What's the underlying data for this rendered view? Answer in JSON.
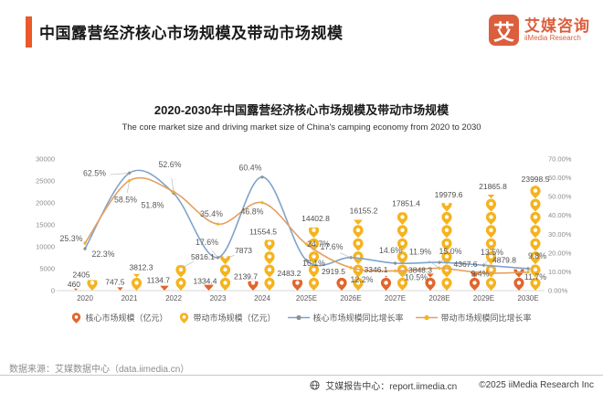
{
  "theme": {
    "accent": "#EB5928",
    "logo": "#DB5F3D"
  },
  "header": {
    "title": "中国露营经济核心市场规模及带动市场规模",
    "logo_mark": "艾",
    "logo_name": "艾媒咨询",
    "logo_sub": "iiMedia Research"
  },
  "chart": {
    "title": "2020-2030年中国露营经济核心市场规模及带动市场规模",
    "subtitle": "The core market size and driving market size of China's camping economy from 2020 to 2030"
  },
  "chart_data": {
    "type": "combo (pictograph columns + smooth lines)",
    "categories": [
      "2020",
      "2021",
      "2022",
      "2023",
      "2024",
      "2025E",
      "2026E",
      "2027E",
      "2028E",
      "2029E",
      "2030E"
    ],
    "series": [
      {
        "name": "核心市场规模（亿元）",
        "type": "pictograph",
        "axis": "left",
        "color": "#E0662C",
        "values": [
          460,
          747.5,
          1134.7,
          1334.4,
          2139.7,
          2483.2,
          2919.5,
          3346.1,
          3848.3,
          4367.6,
          4879.8
        ]
      },
      {
        "name": "带动市场规模（亿元）",
        "type": "pictograph",
        "axis": "left",
        "color": "#F5B31E",
        "values": [
          2405,
          3812.3,
          5816.1,
          7873,
          11554.5,
          14402.8,
          16155.2,
          17851.4,
          19979.6,
          21865.8,
          23998.5
        ]
      },
      {
        "name": "核心市场规模同比增长率",
        "type": "line",
        "axis": "right",
        "color": "#7FA3CC",
        "marker_color": "#8f8f8f",
        "values_percent": [
          22.3,
          62.5,
          51.8,
          17.6,
          60.4,
          16.1,
          17.6,
          14.6,
          15.0,
          13.5,
          11.7
        ]
      },
      {
        "name": "带动市场规模同比增长率",
        "type": "line",
        "axis": "right",
        "color": "#E5A061",
        "marker_color": "#F5B31E",
        "values_percent": [
          25.3,
          58.5,
          52.6,
          35.4,
          46.8,
          24.7,
          12.2,
          10.5,
          11.9,
          9.4,
          9.8
        ]
      }
    ],
    "left_axis": {
      "min": 0,
      "max": 30000,
      "step": 5000,
      "ticks": [
        0,
        5000,
        10000,
        15000,
        20000,
        25000,
        30000
      ]
    },
    "right_axis": {
      "min": 0,
      "max": 70,
      "step": 10,
      "tick_format": "0.00%",
      "ticks": [
        "0.00%",
        "10.00%",
        "20.00%",
        "30.00%",
        "40.00%",
        "50.00%",
        "60.00%",
        "70.00%"
      ]
    },
    "icon_unit": 3000,
    "grid": false,
    "legend_position": "bottom"
  },
  "footer": {
    "source": "数据来源：艾媒数据中心（data.iimedia.cn）",
    "report_center": "艾媒报告中心：report.iimedia.cn",
    "copyright": "©2025  iiMedia Research  Inc"
  }
}
